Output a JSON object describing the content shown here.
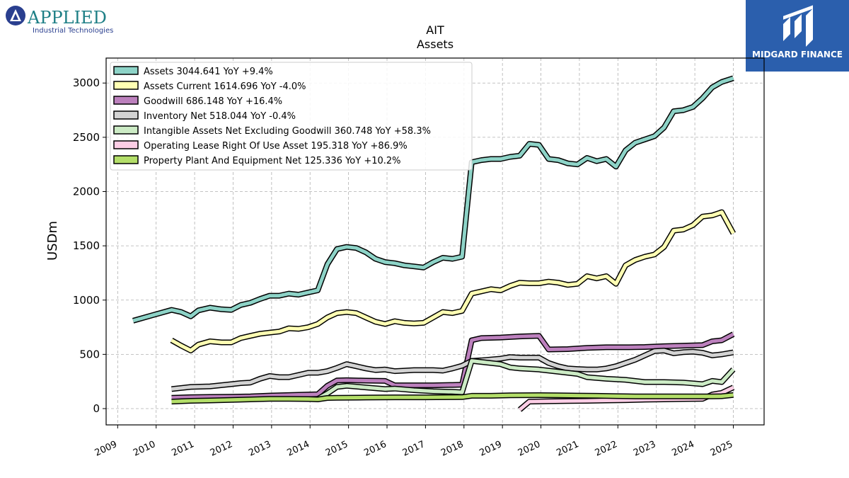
{
  "logos": {
    "left_brand": "APPLIED",
    "left_tagline": "Industrial Technologies",
    "right_brand": "MIDGARD FINANCE"
  },
  "chart_data": {
    "type": "line",
    "title": "AIT",
    "subtitle": "Assets",
    "ylabel": "USDm",
    "xlabel": "",
    "xlim": [
      2008.7,
      2025.8
    ],
    "ylim": [
      -150,
      3230
    ],
    "yticks": [
      0,
      500,
      1000,
      1500,
      2000,
      2500,
      3000
    ],
    "xticks": [
      2009,
      2010,
      2011,
      2012,
      2013,
      2014,
      2015,
      2016,
      2017,
      2018,
      2019,
      2020,
      2021,
      2022,
      2023,
      2024,
      2025
    ],
    "grid": true,
    "legend_position": "top-left",
    "series": [
      {
        "name": "Assets",
        "legend": "Assets  3044.641 YoY +9.4%",
        "color": "#8dd3c7",
        "points": [
          [
            2009.4,
            810
          ],
          [
            2009.9,
            860
          ],
          [
            2010.4,
            910
          ],
          [
            2010.65,
            890
          ],
          [
            2010.9,
            850
          ],
          [
            2011.1,
            905
          ],
          [
            2011.4,
            930
          ],
          [
            2011.7,
            915
          ],
          [
            2011.95,
            910
          ],
          [
            2012.2,
            955
          ],
          [
            2012.45,
            975
          ],
          [
            2012.7,
            1010
          ],
          [
            2012.95,
            1040
          ],
          [
            2013.2,
            1040
          ],
          [
            2013.45,
            1060
          ],
          [
            2013.7,
            1050
          ],
          [
            2013.95,
            1070
          ],
          [
            2014.2,
            1090
          ],
          [
            2014.45,
            1330
          ],
          [
            2014.7,
            1470
          ],
          [
            2014.95,
            1490
          ],
          [
            2015.2,
            1480
          ],
          [
            2015.45,
            1440
          ],
          [
            2015.7,
            1380
          ],
          [
            2015.95,
            1350
          ],
          [
            2016.2,
            1340
          ],
          [
            2016.45,
            1320
          ],
          [
            2016.7,
            1310
          ],
          [
            2016.95,
            1300
          ],
          [
            2017.2,
            1350
          ],
          [
            2017.45,
            1390
          ],
          [
            2017.7,
            1380
          ],
          [
            2017.95,
            1400
          ],
          [
            2018.2,
            2270
          ],
          [
            2018.45,
            2290
          ],
          [
            2018.7,
            2300
          ],
          [
            2018.95,
            2300
          ],
          [
            2019.2,
            2320
          ],
          [
            2019.45,
            2330
          ],
          [
            2019.7,
            2440
          ],
          [
            2019.95,
            2430
          ],
          [
            2020.2,
            2300
          ],
          [
            2020.45,
            2290
          ],
          [
            2020.7,
            2260
          ],
          [
            2020.95,
            2250
          ],
          [
            2021.2,
            2310
          ],
          [
            2021.45,
            2280
          ],
          [
            2021.7,
            2300
          ],
          [
            2021.95,
            2230
          ],
          [
            2022.2,
            2380
          ],
          [
            2022.45,
            2450
          ],
          [
            2022.7,
            2480
          ],
          [
            2022.95,
            2510
          ],
          [
            2023.2,
            2590
          ],
          [
            2023.45,
            2740
          ],
          [
            2023.7,
            2750
          ],
          [
            2023.95,
            2780
          ],
          [
            2024.2,
            2860
          ],
          [
            2024.45,
            2960
          ],
          [
            2024.7,
            3010
          ],
          [
            2025.0,
            3044.641
          ]
        ]
      },
      {
        "name": "Assets Current",
        "legend": "Assets Current  1614.696 YoY -4.0%",
        "color": "#ffffb3",
        "points": [
          [
            2010.4,
            630
          ],
          [
            2010.65,
            580
          ],
          [
            2010.9,
            535
          ],
          [
            2011.1,
            590
          ],
          [
            2011.4,
            620
          ],
          [
            2011.7,
            610
          ],
          [
            2011.95,
            610
          ],
          [
            2012.2,
            650
          ],
          [
            2012.45,
            670
          ],
          [
            2012.7,
            690
          ],
          [
            2012.95,
            700
          ],
          [
            2013.2,
            710
          ],
          [
            2013.45,
            740
          ],
          [
            2013.7,
            735
          ],
          [
            2013.95,
            750
          ],
          [
            2014.2,
            780
          ],
          [
            2014.45,
            840
          ],
          [
            2014.7,
            880
          ],
          [
            2014.95,
            890
          ],
          [
            2015.2,
            880
          ],
          [
            2015.45,
            840
          ],
          [
            2015.7,
            800
          ],
          [
            2015.95,
            780
          ],
          [
            2016.2,
            805
          ],
          [
            2016.45,
            790
          ],
          [
            2016.7,
            785
          ],
          [
            2016.95,
            790
          ],
          [
            2017.2,
            840
          ],
          [
            2017.45,
            890
          ],
          [
            2017.7,
            880
          ],
          [
            2017.95,
            900
          ],
          [
            2018.2,
            1060
          ],
          [
            2018.45,
            1080
          ],
          [
            2018.7,
            1100
          ],
          [
            2018.95,
            1090
          ],
          [
            2019.2,
            1130
          ],
          [
            2019.45,
            1160
          ],
          [
            2019.7,
            1155
          ],
          [
            2019.95,
            1155
          ],
          [
            2020.2,
            1170
          ],
          [
            2020.45,
            1160
          ],
          [
            2020.7,
            1140
          ],
          [
            2020.95,
            1150
          ],
          [
            2021.2,
            1220
          ],
          [
            2021.45,
            1200
          ],
          [
            2021.7,
            1220
          ],
          [
            2021.95,
            1150
          ],
          [
            2022.2,
            1320
          ],
          [
            2022.45,
            1370
          ],
          [
            2022.7,
            1400
          ],
          [
            2022.95,
            1420
          ],
          [
            2023.2,
            1490
          ],
          [
            2023.45,
            1640
          ],
          [
            2023.7,
            1650
          ],
          [
            2023.95,
            1690
          ],
          [
            2024.2,
            1770
          ],
          [
            2024.45,
            1780
          ],
          [
            2024.7,
            1810
          ],
          [
            2025.0,
            1614.696
          ]
        ]
      },
      {
        "name": "Goodwill",
        "legend": "Goodwill  686.148 YoY +16.4%",
        "color": "#bc80bd",
        "points": [
          [
            2010.4,
            100
          ],
          [
            2010.9,
            105
          ],
          [
            2011.4,
            108
          ],
          [
            2011.95,
            110
          ],
          [
            2012.45,
            112
          ],
          [
            2012.95,
            120
          ],
          [
            2013.45,
            125
          ],
          [
            2013.95,
            130
          ],
          [
            2014.2,
            132
          ],
          [
            2014.45,
            210
          ],
          [
            2014.7,
            260
          ],
          [
            2014.95,
            262
          ],
          [
            2015.45,
            258
          ],
          [
            2015.95,
            255
          ],
          [
            2016.2,
            215
          ],
          [
            2016.7,
            215
          ],
          [
            2017.2,
            215
          ],
          [
            2017.7,
            218
          ],
          [
            2017.95,
            220
          ],
          [
            2018.2,
            630
          ],
          [
            2018.45,
            650
          ],
          [
            2018.95,
            655
          ],
          [
            2019.45,
            665
          ],
          [
            2019.95,
            670
          ],
          [
            2020.2,
            545
          ],
          [
            2020.7,
            548
          ],
          [
            2021.2,
            560
          ],
          [
            2021.7,
            565
          ],
          [
            2022.2,
            565
          ],
          [
            2022.7,
            568
          ],
          [
            2023.2,
            575
          ],
          [
            2023.7,
            580
          ],
          [
            2024.2,
            585
          ],
          [
            2024.45,
            620
          ],
          [
            2024.7,
            630
          ],
          [
            2025.0,
            686.148
          ]
        ]
      },
      {
        "name": "Inventory Net",
        "legend": "Inventory Net  518.044 YoY -0.4%",
        "color": "#d3d3d3",
        "points": [
          [
            2010.4,
            180
          ],
          [
            2010.9,
            200
          ],
          [
            2011.4,
            205
          ],
          [
            2011.95,
            225
          ],
          [
            2012.2,
            235
          ],
          [
            2012.45,
            240
          ],
          [
            2012.7,
            275
          ],
          [
            2012.95,
            300
          ],
          [
            2013.2,
            290
          ],
          [
            2013.45,
            290
          ],
          [
            2013.7,
            310
          ],
          [
            2013.95,
            330
          ],
          [
            2014.2,
            330
          ],
          [
            2014.45,
            345
          ],
          [
            2014.7,
            375
          ],
          [
            2014.95,
            410
          ],
          [
            2015.2,
            390
          ],
          [
            2015.45,
            370
          ],
          [
            2015.7,
            355
          ],
          [
            2015.95,
            360
          ],
          [
            2016.2,
            345
          ],
          [
            2016.45,
            350
          ],
          [
            2016.7,
            355
          ],
          [
            2016.95,
            355
          ],
          [
            2017.2,
            355
          ],
          [
            2017.45,
            350
          ],
          [
            2017.7,
            370
          ],
          [
            2017.95,
            395
          ],
          [
            2018.2,
            440
          ],
          [
            2018.45,
            445
          ],
          [
            2018.95,
            460
          ],
          [
            2019.2,
            475
          ],
          [
            2019.45,
            470
          ],
          [
            2019.7,
            470
          ],
          [
            2019.95,
            470
          ],
          [
            2020.2,
            420
          ],
          [
            2020.45,
            390
          ],
          [
            2020.7,
            370
          ],
          [
            2020.95,
            365
          ],
          [
            2021.2,
            360
          ],
          [
            2021.45,
            360
          ],
          [
            2021.7,
            370
          ],
          [
            2021.95,
            390
          ],
          [
            2022.2,
            420
          ],
          [
            2022.45,
            450
          ],
          [
            2022.7,
            490
          ],
          [
            2022.95,
            530
          ],
          [
            2023.2,
            535
          ],
          [
            2023.45,
            510
          ],
          [
            2023.7,
            520
          ],
          [
            2023.95,
            525
          ],
          [
            2024.2,
            515
          ],
          [
            2024.45,
            490
          ],
          [
            2024.7,
            500
          ],
          [
            2025.0,
            518.044
          ]
        ]
      },
      {
        "name": "Intangible Assets Net Excluding Goodwill",
        "legend": "Intangible Assets Net Excluding Goodwill  360.748 YoY +58.3%",
        "color": "#ccebc5",
        "points": [
          [
            2014.2,
            90
          ],
          [
            2014.45,
            140
          ],
          [
            2014.7,
            200
          ],
          [
            2014.95,
            210
          ],
          [
            2015.45,
            195
          ],
          [
            2015.95,
            180
          ],
          [
            2016.2,
            185
          ],
          [
            2016.7,
            170
          ],
          [
            2017.2,
            160
          ],
          [
            2017.7,
            155
          ],
          [
            2017.95,
            150
          ],
          [
            2018.2,
            440
          ],
          [
            2018.45,
            430
          ],
          [
            2018.95,
            410
          ],
          [
            2019.2,
            380
          ],
          [
            2019.45,
            370
          ],
          [
            2019.95,
            360
          ],
          [
            2020.45,
            340
          ],
          [
            2020.95,
            320
          ],
          [
            2021.2,
            290
          ],
          [
            2021.7,
            275
          ],
          [
            2022.2,
            265
          ],
          [
            2022.7,
            245
          ],
          [
            2023.2,
            245
          ],
          [
            2023.7,
            240
          ],
          [
            2024.2,
            225
          ],
          [
            2024.45,
            255
          ],
          [
            2024.7,
            245
          ],
          [
            2025.0,
            360.748
          ]
        ]
      },
      {
        "name": "Operating Lease Right Of Use Asset",
        "legend": "Operating Lease Right Of Use Asset  195.318 YoY +86.9%",
        "color": "#fccde5",
        "points": [
          [
            2019.45,
            -10
          ],
          [
            2019.7,
            65
          ],
          [
            2020.2,
            68
          ],
          [
            2020.7,
            70
          ],
          [
            2021.2,
            72
          ],
          [
            2021.7,
            75
          ],
          [
            2022.2,
            78
          ],
          [
            2022.7,
            82
          ],
          [
            2023.2,
            85
          ],
          [
            2023.7,
            88
          ],
          [
            2024.2,
            90
          ],
          [
            2024.45,
            130
          ],
          [
            2024.7,
            145
          ],
          [
            2025.0,
            195.318
          ]
        ]
      },
      {
        "name": "Property Plant And Equipment Net",
        "legend": "Property Plant And Equipment Net  125.336 YoY +10.2%",
        "color": "#b3de69",
        "points": [
          [
            2010.4,
            65
          ],
          [
            2010.9,
            72
          ],
          [
            2011.4,
            75
          ],
          [
            2011.95,
            80
          ],
          [
            2012.45,
            85
          ],
          [
            2012.95,
            90
          ],
          [
            2013.45,
            90
          ],
          [
            2013.95,
            88
          ],
          [
            2014.2,
            85
          ],
          [
            2014.45,
            98
          ],
          [
            2014.7,
            100
          ],
          [
            2015.45,
            102
          ],
          [
            2016.2,
            104
          ],
          [
            2016.95,
            104
          ],
          [
            2017.7,
            105
          ],
          [
            2017.95,
            106
          ],
          [
            2018.2,
            118
          ],
          [
            2018.7,
            118
          ],
          [
            2019.2,
            122
          ],
          [
            2019.95,
            124
          ],
          [
            2020.45,
            122
          ],
          [
            2020.95,
            120
          ],
          [
            2021.45,
            118
          ],
          [
            2021.95,
            115
          ],
          [
            2022.45,
            113
          ],
          [
            2022.95,
            112
          ],
          [
            2023.45,
            112
          ],
          [
            2023.95,
            112
          ],
          [
            2024.45,
            112
          ],
          [
            2024.7,
            114
          ],
          [
            2025.0,
            125.336
          ]
        ]
      }
    ]
  }
}
